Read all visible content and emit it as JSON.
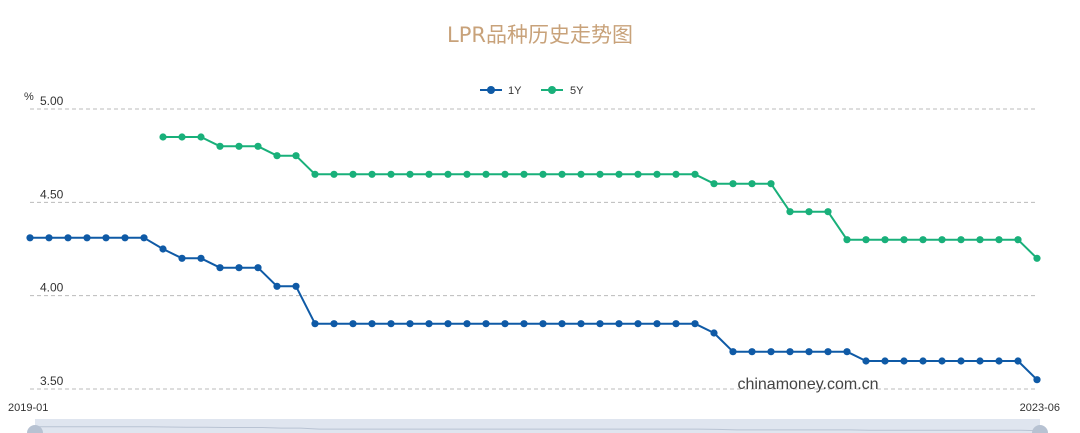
{
  "chart_data": {
    "type": "line",
    "title": "LPR品种历史走势图",
    "unit": "%",
    "ylim": [
      3.5,
      5.0
    ],
    "yticks": [
      "5.00",
      "4.50",
      "4.00",
      "3.50"
    ],
    "x_start_label": "2019-01",
    "x_end_label": "2023-06",
    "x_count": 54,
    "grid": "horizontal dashed",
    "legend_position": "top-center",
    "watermark": "chinamoney.com.cn",
    "colors": {
      "title": "#c8a27a",
      "1Y": "#0f5aa6",
      "5Y": "#19b07a",
      "grid": "#bbbbbb"
    },
    "series": [
      {
        "name": "1Y",
        "start_index": 0,
        "values": [
          4.31,
          4.31,
          4.31,
          4.31,
          4.31,
          4.31,
          4.31,
          4.25,
          4.2,
          4.2,
          4.15,
          4.15,
          4.15,
          4.05,
          4.05,
          3.85,
          3.85,
          3.85,
          3.85,
          3.85,
          3.85,
          3.85,
          3.85,
          3.85,
          3.85,
          3.85,
          3.85,
          3.85,
          3.85,
          3.85,
          3.85,
          3.85,
          3.85,
          3.85,
          3.85,
          3.85,
          3.8,
          3.7,
          3.7,
          3.7,
          3.7,
          3.7,
          3.7,
          3.7,
          3.65,
          3.65,
          3.65,
          3.65,
          3.65,
          3.65,
          3.65,
          3.65,
          3.65,
          3.55
        ]
      },
      {
        "name": "5Y",
        "start_index": 7,
        "values": [
          4.85,
          4.85,
          4.85,
          4.8,
          4.8,
          4.8,
          4.75,
          4.75,
          4.65,
          4.65,
          4.65,
          4.65,
          4.65,
          4.65,
          4.65,
          4.65,
          4.65,
          4.65,
          4.65,
          4.65,
          4.65,
          4.65,
          4.65,
          4.65,
          4.65,
          4.65,
          4.65,
          4.65,
          4.65,
          4.6,
          4.6,
          4.6,
          4.6,
          4.45,
          4.45,
          4.45,
          4.3,
          4.3,
          4.3,
          4.3,
          4.3,
          4.3,
          4.3,
          4.3,
          4.3,
          4.3,
          4.2
        ]
      }
    ]
  }
}
